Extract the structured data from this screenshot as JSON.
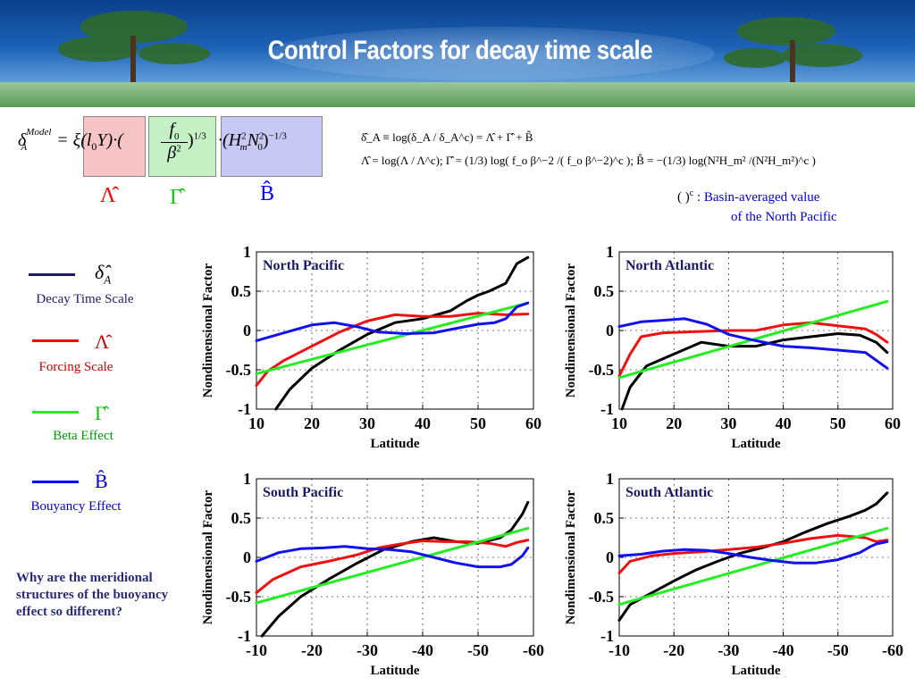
{
  "slide_title": "Control Factors for decay time scale",
  "formula": {
    "lhs": "δ",
    "lhs_sup": "Model",
    "lhs_sub": "A",
    "eq_term1": "= ξ(l",
    "eq_term1_sub": "0",
    "eq_term1_end": "Y)·(",
    "frac_num": "f",
    "frac_num_sub": "0",
    "frac_den": "β",
    "frac_den_sup": "2",
    "frac_exp": ")",
    "frac_exp_sup": "1/3",
    "term3": "·(H",
    "term3_sup1": "2",
    "term3_sub1": "m",
    "term3_mid": "N",
    "term3_sup2": "2",
    "term3_sub2": "0",
    "term3_end": ")",
    "term3_exp": "−1/3",
    "lambda_label": "Λ̂",
    "gamma_label": "Γ̂",
    "b_label": "B̂"
  },
  "definitions": {
    "line1": "δ̂_A ≡ log(δ_A / δ_A^c) = Λ̂ + Γ̂ + B̂",
    "line2": "Λ̂ =  log(Λ / Λ^c);   Γ̂ = (1/3) log( f_o β^−2 /( f_o β^−2)^c );    B̂ = −(1/3) log(N²H_m² /(N²H_m²)^c )"
  },
  "note": {
    "symbol": "( )",
    "symbol_sup": "c",
    "line1": ": Basin-averaged value",
    "line2": "of the North Pacific"
  },
  "legend": [
    {
      "symbol": "δ̂",
      "symbol_sub": "A",
      "label": "Decay Time Scale",
      "color": "#1f1a6e",
      "label_color": "#1f1a6e"
    },
    {
      "symbol": "Λ̂",
      "symbol_sub": "",
      "label": "Forcing  Scale",
      "color": "#ff0000",
      "label_color": "#cc0000"
    },
    {
      "symbol": "Γ̂",
      "symbol_sub": "",
      "label": "Beta Effect",
      "color": "#22ee22",
      "label_color": "#009900"
    },
    {
      "symbol": "B̂",
      "symbol_sub": "",
      "label": "Bouyancy Effect",
      "color": "#0000ff",
      "label_color": "#0000cc"
    }
  ],
  "question": "Why are the meridional structures of the buoyancy effect so different?",
  "colors": {
    "black_series": "#000000",
    "red_series": "#ee1111",
    "green_series": "#22ee22",
    "blue_series": "#1111ee",
    "panel_title": "#1a1a66",
    "box_lambda": "#f6c4c4",
    "box_gamma": "#c4f0c4",
    "box_b": "#c8c8f4"
  },
  "chart_data": [
    {
      "type": "line",
      "title": "North Pacific",
      "xlabel": "Latitude",
      "ylabel": "Nondimensional Factor",
      "xlim": [
        10,
        60
      ],
      "ylim": [
        -1,
        1
      ],
      "xticks": [
        "10",
        "20",
        "30",
        "40",
        "50",
        "60"
      ],
      "yticks": [
        "1",
        "0.5",
        "0",
        "-0.5",
        "-1"
      ],
      "series": [
        {
          "color": "#000000",
          "points": [
            [
              13.5,
              -1
            ],
            [
              16,
              -0.75
            ],
            [
              20,
              -0.48
            ],
            [
              25,
              -0.25
            ],
            [
              30,
              -0.05
            ],
            [
              35,
              0.1
            ],
            [
              40,
              0.15
            ],
            [
              45,
              0.25
            ],
            [
              48,
              0.38
            ],
            [
              50,
              0.45
            ],
            [
              52,
              0.5
            ],
            [
              55,
              0.6
            ],
            [
              57,
              0.85
            ],
            [
              59,
              0.93
            ]
          ]
        },
        {
          "color": "#ee1111",
          "points": [
            [
              10,
              -0.7
            ],
            [
              12,
              -0.52
            ],
            [
              15,
              -0.38
            ],
            [
              20,
              -0.2
            ],
            [
              25,
              -0.02
            ],
            [
              30,
              0.12
            ],
            [
              35,
              0.2
            ],
            [
              40,
              0.18
            ],
            [
              45,
              0.18
            ],
            [
              50,
              0.22
            ],
            [
              55,
              0.2
            ],
            [
              59,
              0.21
            ]
          ]
        },
        {
          "color": "#22ee22",
          "points": [
            [
              10,
              -0.55
            ],
            [
              59,
              0.35
            ]
          ]
        },
        {
          "color": "#1111ee",
          "points": [
            [
              10,
              -0.13
            ],
            [
              15,
              -0.03
            ],
            [
              20,
              0.07
            ],
            [
              24,
              0.1
            ],
            [
              28,
              0.05
            ],
            [
              32,
              -0.02
            ],
            [
              37,
              -0.04
            ],
            [
              42,
              -0.03
            ],
            [
              47,
              0.04
            ],
            [
              50,
              0.08
            ],
            [
              53,
              0.1
            ],
            [
              55,
              0.15
            ],
            [
              57,
              0.3
            ],
            [
              59,
              0.35
            ]
          ]
        }
      ]
    },
    {
      "type": "line",
      "title": "North Atlantic",
      "xlabel": "Latitude",
      "ylabel": "Nondimensional Factor",
      "xlim": [
        10,
        60
      ],
      "ylim": [
        -1,
        1
      ],
      "xticks": [
        "10",
        "20",
        "30",
        "40",
        "50",
        "60"
      ],
      "yticks": [
        "1",
        "0.5",
        "0",
        "-0.5",
        "-1"
      ],
      "series": [
        {
          "color": "#000000",
          "points": [
            [
              10.5,
              -1
            ],
            [
              12,
              -0.72
            ],
            [
              15,
              -0.45
            ],
            [
              20,
              -0.3
            ],
            [
              25,
              -0.15
            ],
            [
              30,
              -0.2
            ],
            [
              35,
              -0.2
            ],
            [
              40,
              -0.12
            ],
            [
              45,
              -0.08
            ],
            [
              50,
              -0.04
            ],
            [
              54,
              -0.06
            ],
            [
              57,
              -0.15
            ],
            [
              59,
              -0.28
            ]
          ]
        },
        {
          "color": "#ee1111",
          "points": [
            [
              10,
              -0.58
            ],
            [
              12,
              -0.3
            ],
            [
              14,
              -0.08
            ],
            [
              18,
              -0.03
            ],
            [
              22,
              -0.02
            ],
            [
              30,
              0.0
            ],
            [
              35,
              0.0
            ],
            [
              40,
              0.07
            ],
            [
              45,
              0.1
            ],
            [
              50,
              0.06
            ],
            [
              55,
              0.02
            ],
            [
              57,
              -0.05
            ],
            [
              59,
              -0.15
            ]
          ]
        },
        {
          "color": "#22ee22",
          "points": [
            [
              10,
              -0.6
            ],
            [
              59,
              0.37
            ]
          ]
        },
        {
          "color": "#1111ee",
          "points": [
            [
              10,
              0.05
            ],
            [
              14,
              0.11
            ],
            [
              18,
              0.13
            ],
            [
              22,
              0.15
            ],
            [
              26,
              0.08
            ],
            [
              30,
              -0.05
            ],
            [
              35,
              -0.13
            ],
            [
              40,
              -0.2
            ],
            [
              45,
              -0.22
            ],
            [
              50,
              -0.25
            ],
            [
              55,
              -0.28
            ],
            [
              59,
              -0.48
            ]
          ]
        }
      ]
    },
    {
      "type": "line",
      "title": "South Pacific",
      "xlabel": "Latitude",
      "ylabel": "Nondimensional Factor",
      "xlim": [
        -10,
        -60
      ],
      "ylim": [
        -1,
        1
      ],
      "xticks": [
        "-10",
        "-20",
        "-30",
        "-40",
        "-50",
        "-60"
      ],
      "yticks": [
        "1",
        "0.5",
        "0",
        "-0.5",
        "-1"
      ],
      "series": [
        {
          "color": "#000000",
          "points": [
            [
              -11,
              -1
            ],
            [
              -14,
              -0.75
            ],
            [
              -18,
              -0.5
            ],
            [
              -23,
              -0.28
            ],
            [
              -28,
              -0.08
            ],
            [
              -33,
              0.1
            ],
            [
              -38,
              0.2
            ],
            [
              -42,
              0.25
            ],
            [
              -46,
              0.2
            ],
            [
              -50,
              0.18
            ],
            [
              -54,
              0.25
            ],
            [
              -56,
              0.35
            ],
            [
              -58,
              0.55
            ],
            [
              -59,
              0.7
            ]
          ]
        },
        {
          "color": "#ee1111",
          "points": [
            [
              -10,
              -0.45
            ],
            [
              -13,
              -0.28
            ],
            [
              -18,
              -0.12
            ],
            [
              -23,
              -0.05
            ],
            [
              -28,
              0.03
            ],
            [
              -32,
              0.12
            ],
            [
              -36,
              0.17
            ],
            [
              -40,
              0.21
            ],
            [
              -44,
              0.2
            ],
            [
              -48,
              0.2
            ],
            [
              -52,
              0.18
            ],
            [
              -55,
              0.14
            ],
            [
              -57,
              0.19
            ],
            [
              -59,
              0.22
            ]
          ]
        },
        {
          "color": "#22ee22",
          "points": [
            [
              -10,
              -0.58
            ],
            [
              -59,
              0.37
            ]
          ]
        },
        {
          "color": "#1111ee",
          "points": [
            [
              -10,
              -0.05
            ],
            [
              -14,
              0.06
            ],
            [
              -18,
              0.11
            ],
            [
              -22,
              0.12
            ],
            [
              -26,
              0.14
            ],
            [
              -30,
              0.11
            ],
            [
              -34,
              0.1
            ],
            [
              -38,
              0.07
            ],
            [
              -42,
              0.0
            ],
            [
              -46,
              -0.07
            ],
            [
              -50,
              -0.12
            ],
            [
              -54,
              -0.12
            ],
            [
              -56,
              -0.09
            ],
            [
              -58,
              0.02
            ],
            [
              -59,
              0.12
            ]
          ]
        }
      ]
    },
    {
      "type": "line",
      "title": "South Atlantic",
      "xlabel": "Latitude",
      "ylabel": "Nondimensional Factor",
      "xlim": [
        -10,
        -60
      ],
      "ylim": [
        -1,
        1
      ],
      "xticks": [
        "-10",
        "-20",
        "-30",
        "-40",
        "-50",
        "-60"
      ],
      "yticks": [
        "1",
        "0.5",
        "0",
        "-0.5",
        "-1"
      ],
      "series": [
        {
          "color": "#000000",
          "points": [
            [
              -10,
              -0.8
            ],
            [
              -12,
              -0.6
            ],
            [
              -16,
              -0.45
            ],
            [
              -20,
              -0.3
            ],
            [
              -24,
              -0.16
            ],
            [
              -28,
              -0.05
            ],
            [
              -32,
              0.05
            ],
            [
              -36,
              0.12
            ],
            [
              -40,
              0.2
            ],
            [
              -44,
              0.32
            ],
            [
              -48,
              0.43
            ],
            [
              -52,
              0.52
            ],
            [
              -55,
              0.6
            ],
            [
              -57,
              0.68
            ],
            [
              -59,
              0.82
            ]
          ]
        },
        {
          "color": "#ee1111",
          "points": [
            [
              -10,
              -0.2
            ],
            [
              -12,
              -0.05
            ],
            [
              -16,
              0.02
            ],
            [
              -20,
              0.05
            ],
            [
              -25,
              0.07
            ],
            [
              -30,
              0.1
            ],
            [
              -35,
              0.13
            ],
            [
              -40,
              0.18
            ],
            [
              -45,
              0.24
            ],
            [
              -50,
              0.28
            ],
            [
              -55,
              0.25
            ],
            [
              -57,
              0.2
            ],
            [
              -59,
              0.22
            ]
          ]
        },
        {
          "color": "#22ee22",
          "points": [
            [
              -10,
              -0.6
            ],
            [
              -59,
              0.37
            ]
          ]
        },
        {
          "color": "#1111ee",
          "points": [
            [
              -10,
              0.02
            ],
            [
              -14,
              0.04
            ],
            [
              -18,
              0.08
            ],
            [
              -22,
              0.1
            ],
            [
              -26,
              0.09
            ],
            [
              -30,
              0.05
            ],
            [
              -34,
              0.0
            ],
            [
              -38,
              -0.04
            ],
            [
              -42,
              -0.07
            ],
            [
              -46,
              -0.07
            ],
            [
              -50,
              -0.03
            ],
            [
              -54,
              0.06
            ],
            [
              -56,
              0.14
            ],
            [
              -57,
              0.17
            ],
            [
              -59,
              0.2
            ]
          ]
        }
      ]
    }
  ]
}
